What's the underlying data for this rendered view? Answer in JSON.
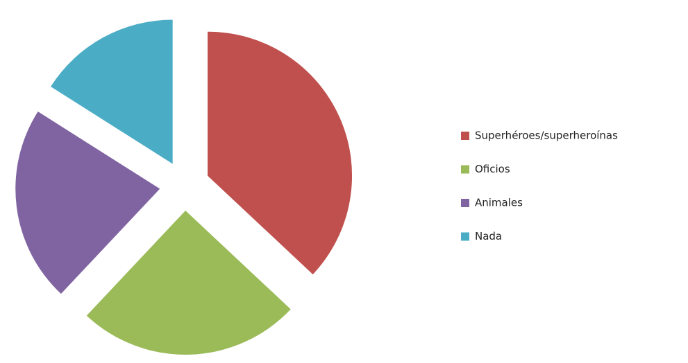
{
  "chart_data": {
    "type": "pie",
    "exploded": true,
    "categories": [
      "Superhéroes/superheroínas",
      "Oficios",
      "Animales",
      "Nada"
    ],
    "values": [
      37,
      25,
      22,
      16
    ],
    "colors": [
      "#c0504d",
      "#9bbb59",
      "#8064a2",
      "#4bacc6"
    ],
    "legend": "right"
  }
}
